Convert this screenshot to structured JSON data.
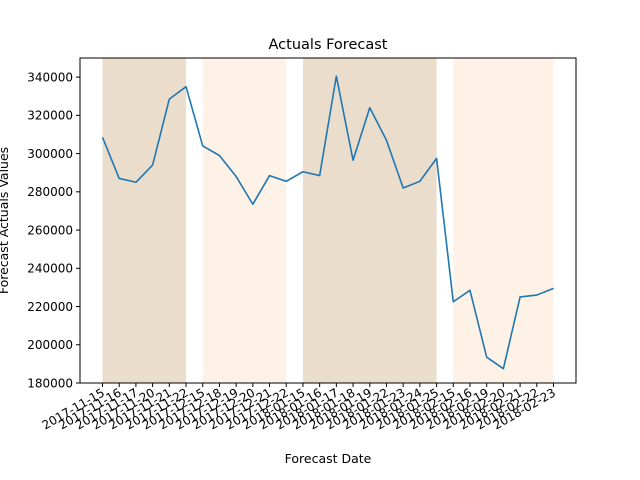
{
  "chart_data": {
    "type": "line",
    "title": "Actuals Forecast",
    "xlabel": "Forecast Date",
    "ylabel": "Forecast Actuals Values",
    "ylim": [
      180000,
      350000
    ],
    "yticks": [
      180000,
      200000,
      220000,
      240000,
      260000,
      280000,
      300000,
      320000,
      340000
    ],
    "ytick_labels": [
      "180000",
      "200000",
      "220000",
      "240000",
      "260000",
      "280000",
      "300000",
      "320000",
      "340000"
    ],
    "categories": [
      "2017-11-15",
      "2017-11-16",
      "2017-11-17",
      "2017-11-20",
      "2017-11-21",
      "2017-11-22",
      "2017-12-15",
      "2017-12-18",
      "2017-12-19",
      "2017-12-20",
      "2017-12-21",
      "2017-12-22",
      "2018-01-15",
      "2018-01-16",
      "2018-01-17",
      "2018-01-18",
      "2018-01-19",
      "2018-01-22",
      "2018-01-23",
      "2018-01-24",
      "2018-01-25",
      "2018-02-15",
      "2018-02-16",
      "2018-02-19",
      "2018-02-20",
      "2018-02-21",
      "2018-02-22",
      "2018-02-23"
    ],
    "values": [
      308500,
      287000,
      285000,
      294000,
      328500,
      335000,
      304000,
      299000,
      288000,
      273500,
      288500,
      285500,
      290500,
      288500,
      340500,
      296500,
      324000,
      307000,
      282000,
      285500,
      297500,
      222500,
      228500,
      193500,
      187500,
      225000,
      226000,
      229500
    ],
    "series_color": "#1f77b4",
    "shaded_bands": [
      {
        "from_index": 0,
        "to_index": 5,
        "color": "#d2b48c",
        "opacity": 0.45
      },
      {
        "from_index": 6,
        "to_index": 11,
        "color": "#fbe8d0",
        "opacity": 0.55
      },
      {
        "from_index": 12,
        "to_index": 20,
        "color": "#d2b48c",
        "opacity": 0.45
      },
      {
        "from_index": 21,
        "to_index": 27,
        "color": "#fbe8d0",
        "opacity": 0.55
      }
    ],
    "grid": false,
    "legend": false
  }
}
